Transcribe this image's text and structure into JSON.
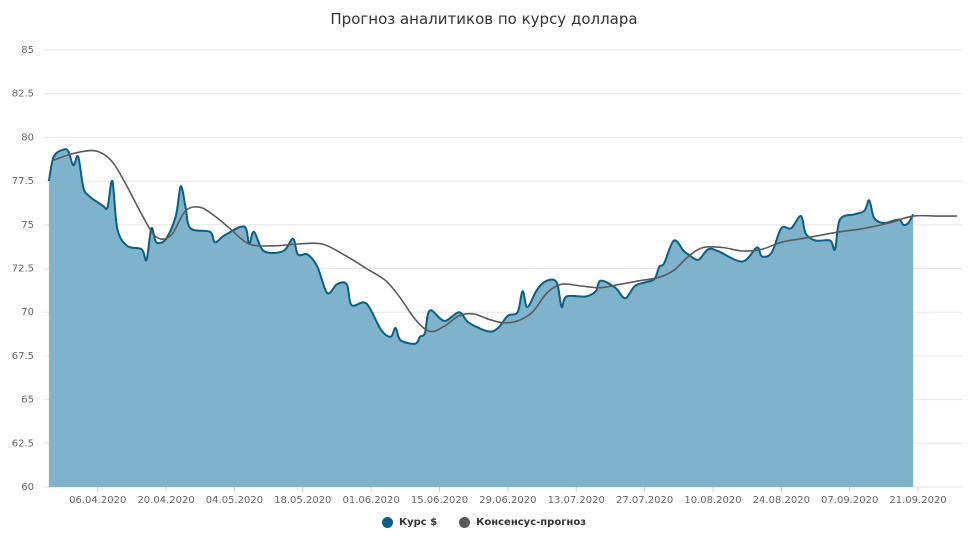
{
  "colors": {
    "rate": "#0b5f85",
    "rate_fill": "#7fb3cb",
    "consensus": "#5a5a5a",
    "grid": "#e6e6e6",
    "text": "#666666"
  },
  "chart_data": {
    "type": "area",
    "title": "Прогноз аналитиков по курсу доллара",
    "xlabel": "",
    "ylabel": "",
    "ylim": [
      60,
      85
    ],
    "y_ticks": [
      "60",
      "62.5",
      "65",
      "67.5",
      "70",
      "72.5",
      "75",
      "77.5",
      "80",
      "82.5",
      "85"
    ],
    "x_ticks": [
      "06.04.2020",
      "20.04.2020",
      "04.05.2020",
      "18.05.2020",
      "01.06.2020",
      "15.06.2020",
      "29.06.2020",
      "13.07.2020",
      "27.07.2020",
      "10.08.2020",
      "24.08.2020",
      "07.09.2020",
      "21.09.2020"
    ],
    "legend_position": "bottom",
    "grid": true,
    "series": [
      {
        "name": "Курс $",
        "type": "area",
        "points": [
          [
            "2020-03-27",
            77.5
          ],
          [
            "2020-03-28",
            78.9
          ],
          [
            "2020-03-30",
            79.3
          ],
          [
            "2020-03-31",
            79.2
          ],
          [
            "2020-04-01",
            78.4
          ],
          [
            "2020-04-02",
            78.9
          ],
          [
            "2020-04-03",
            77.2
          ],
          [
            "2020-04-04",
            76.7
          ],
          [
            "2020-04-07",
            76.1
          ],
          [
            "2020-04-08",
            76.0
          ],
          [
            "2020-04-09",
            77.5
          ],
          [
            "2020-04-10",
            74.8
          ],
          [
            "2020-04-12",
            73.8
          ],
          [
            "2020-04-15",
            73.6
          ],
          [
            "2020-04-16",
            73.0
          ],
          [
            "2020-04-17",
            74.8
          ],
          [
            "2020-04-18",
            74.0
          ],
          [
            "2020-04-20",
            74.2
          ],
          [
            "2020-04-22",
            75.5
          ],
          [
            "2020-04-23",
            77.2
          ],
          [
            "2020-04-24",
            76.0
          ],
          [
            "2020-04-25",
            74.8
          ],
          [
            "2020-04-29",
            74.6
          ],
          [
            "2020-04-30",
            74.0
          ],
          [
            "2020-05-02",
            74.4
          ],
          [
            "2020-05-06",
            74.9
          ],
          [
            "2020-05-07",
            73.9
          ],
          [
            "2020-05-08",
            74.6
          ],
          [
            "2020-05-10",
            73.5
          ],
          [
            "2020-05-14",
            73.5
          ],
          [
            "2020-05-16",
            74.2
          ],
          [
            "2020-05-17",
            73.3
          ],
          [
            "2020-05-19",
            73.3
          ],
          [
            "2020-05-21",
            72.6
          ],
          [
            "2020-05-23",
            71.1
          ],
          [
            "2020-05-25",
            71.6
          ],
          [
            "2020-05-27",
            71.6
          ],
          [
            "2020-05-28",
            70.4
          ],
          [
            "2020-05-31",
            70.5
          ],
          [
            "2020-06-03",
            69.0
          ],
          [
            "2020-06-05",
            68.6
          ],
          [
            "2020-06-06",
            69.1
          ],
          [
            "2020-06-07",
            68.4
          ],
          [
            "2020-06-10",
            68.2
          ],
          [
            "2020-06-11",
            68.6
          ],
          [
            "2020-06-12",
            68.8
          ],
          [
            "2020-06-13",
            70.1
          ],
          [
            "2020-06-16",
            69.5
          ],
          [
            "2020-06-19",
            70.0
          ],
          [
            "2020-06-21",
            69.4
          ],
          [
            "2020-06-25",
            68.9
          ],
          [
            "2020-06-27",
            69.1
          ],
          [
            "2020-06-29",
            69.8
          ],
          [
            "2020-07-01",
            70.0
          ],
          [
            "2020-07-02",
            71.2
          ],
          [
            "2020-07-03",
            70.3
          ],
          [
            "2020-07-05",
            71.3
          ],
          [
            "2020-07-07",
            71.8
          ],
          [
            "2020-07-09",
            71.7
          ],
          [
            "2020-07-10",
            70.3
          ],
          [
            "2020-07-11",
            70.9
          ],
          [
            "2020-07-15",
            70.9
          ],
          [
            "2020-07-17",
            71.2
          ],
          [
            "2020-07-18",
            71.8
          ],
          [
            "2020-07-21",
            71.4
          ],
          [
            "2020-07-23",
            70.8
          ],
          [
            "2020-07-25",
            71.5
          ],
          [
            "2020-07-27",
            71.7
          ],
          [
            "2020-07-29",
            71.9
          ],
          [
            "2020-07-30",
            72.6
          ],
          [
            "2020-07-31",
            72.8
          ],
          [
            "2020-08-02",
            74.1
          ],
          [
            "2020-08-04",
            73.5
          ],
          [
            "2020-08-05",
            73.3
          ],
          [
            "2020-08-07",
            73.0
          ],
          [
            "2020-08-09",
            73.6
          ],
          [
            "2020-08-11",
            73.5
          ],
          [
            "2020-08-16",
            72.9
          ],
          [
            "2020-08-19",
            73.7
          ],
          [
            "2020-08-20",
            73.2
          ],
          [
            "2020-08-22",
            73.4
          ],
          [
            "2020-08-24",
            74.8
          ],
          [
            "2020-08-26",
            74.8
          ],
          [
            "2020-08-28",
            75.5
          ],
          [
            "2020-08-29",
            74.5
          ],
          [
            "2020-08-31",
            74.1
          ],
          [
            "2020-09-03",
            74.1
          ],
          [
            "2020-09-04",
            73.6
          ],
          [
            "2020-09-05",
            75.3
          ],
          [
            "2020-09-08",
            75.6
          ],
          [
            "2020-09-10",
            75.8
          ],
          [
            "2020-09-11",
            76.4
          ],
          [
            "2020-09-12",
            75.4
          ],
          [
            "2020-09-14",
            75.1
          ],
          [
            "2020-09-17",
            75.3
          ],
          [
            "2020-09-18",
            75.0
          ],
          [
            "2020-09-19",
            75.1
          ],
          [
            "2020-09-20",
            75.6
          ]
        ]
      },
      {
        "name": "Консенсус-прогноз",
        "type": "line",
        "points": [
          [
            "2020-03-28",
            78.7
          ],
          [
            "2020-03-31",
            79.0
          ],
          [
            "2020-04-03",
            79.2
          ],
          [
            "2020-04-06",
            79.2
          ],
          [
            "2020-04-09",
            78.6
          ],
          [
            "2020-04-12",
            77.2
          ],
          [
            "2020-04-15",
            75.6
          ],
          [
            "2020-04-18",
            74.3
          ],
          [
            "2020-04-21",
            74.4
          ],
          [
            "2020-04-24",
            75.8
          ],
          [
            "2020-04-27",
            76.0
          ],
          [
            "2020-04-30",
            75.5
          ],
          [
            "2020-05-03",
            74.8
          ],
          [
            "2020-05-07",
            73.9
          ],
          [
            "2020-05-12",
            73.8
          ],
          [
            "2020-05-17",
            73.9
          ],
          [
            "2020-05-22",
            73.9
          ],
          [
            "2020-05-27",
            73.2
          ],
          [
            "2020-05-31",
            72.5
          ],
          [
            "2020-06-04",
            71.8
          ],
          [
            "2020-06-07",
            70.8
          ],
          [
            "2020-06-10",
            69.6
          ],
          [
            "2020-06-13",
            68.9
          ],
          [
            "2020-06-16",
            69.2
          ],
          [
            "2020-06-19",
            69.8
          ],
          [
            "2020-06-22",
            69.9
          ],
          [
            "2020-06-25",
            69.6
          ],
          [
            "2020-06-28",
            69.4
          ],
          [
            "2020-07-01",
            69.5
          ],
          [
            "2020-07-04",
            70.0
          ],
          [
            "2020-07-07",
            71.1
          ],
          [
            "2020-07-10",
            71.6
          ],
          [
            "2020-07-14",
            71.5
          ],
          [
            "2020-07-18",
            71.4
          ],
          [
            "2020-07-22",
            71.6
          ],
          [
            "2020-07-26",
            71.8
          ],
          [
            "2020-07-30",
            72.0
          ],
          [
            "2020-08-02",
            72.4
          ],
          [
            "2020-08-05",
            73.2
          ],
          [
            "2020-08-08",
            73.7
          ],
          [
            "2020-08-12",
            73.7
          ],
          [
            "2020-08-16",
            73.5
          ],
          [
            "2020-08-20",
            73.6
          ],
          [
            "2020-08-24",
            74.0
          ],
          [
            "2020-08-28",
            74.2
          ],
          [
            "2020-09-01",
            74.4
          ],
          [
            "2020-09-05",
            74.6
          ],
          [
            "2020-09-10",
            74.8
          ],
          [
            "2020-09-15",
            75.1
          ],
          [
            "2020-09-20",
            75.5
          ],
          [
            "2020-09-25",
            75.5
          ],
          [
            "2020-09-29",
            75.5
          ]
        ]
      }
    ]
  }
}
